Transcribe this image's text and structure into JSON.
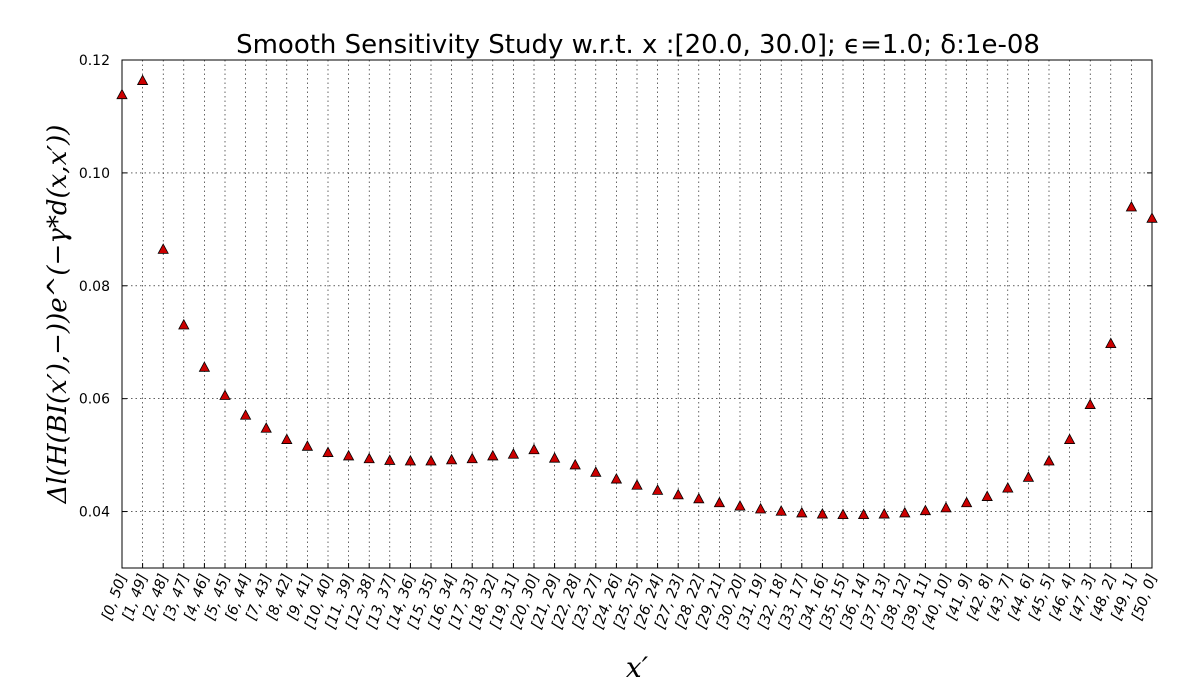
{
  "chart_data": {
    "type": "scatter",
    "title": "Smooth Sensitivity Study w.r.t. x :[20.0, 30.0]; ϵ=1.0; δ:1e-08",
    "xlabel": "x′",
    "ylabel": "Δl(H(BI(x′),−))e^(−γ*d(x,x′))",
    "ylim": [
      0.03,
      0.12
    ],
    "yticks": [
      "0.04",
      "0.06",
      "0.08",
      "0.10",
      "0.12"
    ],
    "grid": true,
    "marker": "triangle-up",
    "marker_color": "#cc0000",
    "categories": [
      "[0, 50]",
      "[1, 49]",
      "[2, 48]",
      "[3, 47]",
      "[4, 46]",
      "[5, 45]",
      "[6, 44]",
      "[7, 43]",
      "[8, 42]",
      "[9, 41]",
      "[10, 40]",
      "[11, 39]",
      "[12, 38]",
      "[13, 37]",
      "[14, 36]",
      "[15, 35]",
      "[16, 34]",
      "[17, 33]",
      "[18, 32]",
      "[19, 31]",
      "[20, 30]",
      "[21, 29]",
      "[22, 28]",
      "[23, 27]",
      "[24, 26]",
      "[25, 25]",
      "[26, 24]",
      "[27, 23]",
      "[28, 22]",
      "[29, 21]",
      "[30, 20]",
      "[31, 19]",
      "[32, 18]",
      "[33, 17]",
      "[34, 16]",
      "[35, 15]",
      "[36, 14]",
      "[37, 13]",
      "[38, 12]",
      "[39, 11]",
      "[40, 10]",
      "[41, 9]",
      "[42, 8]",
      "[43, 7]",
      "[44, 6]",
      "[45, 5]",
      "[46, 4]",
      "[47, 3]",
      "[48, 2]",
      "[49, 1]",
      "[50, 0]"
    ],
    "values": [
      0.1139,
      0.1164,
      0.0865,
      0.0731,
      0.0656,
      0.0606,
      0.0571,
      0.0548,
      0.0528,
      0.0516,
      0.0505,
      0.0499,
      0.0494,
      0.0491,
      0.049,
      0.049,
      0.0492,
      0.0494,
      0.0499,
      0.0502,
      0.051,
      0.0495,
      0.0483,
      0.047,
      0.0458,
      0.0447,
      0.0438,
      0.043,
      0.0423,
      0.0416,
      0.041,
      0.0405,
      0.0401,
      0.0398,
      0.0396,
      0.0395,
      0.0395,
      0.0396,
      0.0398,
      0.0402,
      0.0407,
      0.0416,
      0.0427,
      0.0442,
      0.0461,
      0.049,
      0.0528,
      0.059,
      0.0698,
      0.094,
      0.092
    ]
  }
}
